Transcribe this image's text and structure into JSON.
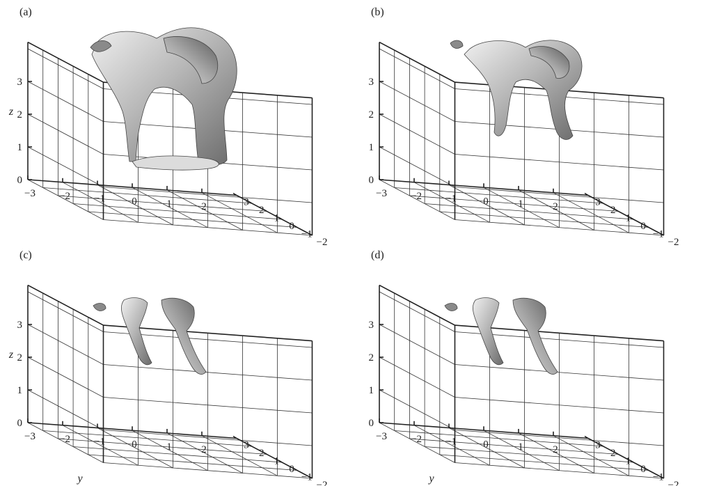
{
  "figure": {
    "panels": [
      {
        "label": "(a)",
        "z_axis_label": "z",
        "y_axis_label": "",
        "z_ticks": [
          "0",
          "1",
          "2",
          "3"
        ],
        "y_ticks": [
          "−3",
          "−2",
          "−1",
          "0",
          "1",
          "2"
        ],
        "x_ticks": [
          "3",
          "2",
          "1",
          "0",
          "−1",
          "−2"
        ],
        "structure_extent": "large"
      },
      {
        "label": "(b)",
        "z_axis_label": "",
        "y_axis_label": "",
        "z_ticks": [
          "0",
          "1",
          "2",
          "3"
        ],
        "y_ticks": [
          "−3",
          "−2",
          "−1",
          "0",
          "1",
          "2"
        ],
        "x_ticks": [
          "3",
          "2",
          "1",
          "0",
          "−1",
          "−2"
        ],
        "structure_extent": "medium"
      },
      {
        "label": "(c)",
        "z_axis_label": "z",
        "y_axis_label": "y",
        "z_ticks": [
          "0",
          "1",
          "2",
          "3"
        ],
        "y_ticks": [
          "−3",
          "−2",
          "−1",
          "0",
          "1",
          "2"
        ],
        "x_ticks": [
          "3",
          "2",
          "1",
          "0",
          "−1",
          "−2"
        ],
        "structure_extent": "small"
      },
      {
        "label": "(d)",
        "z_axis_label": "",
        "y_axis_label": "y",
        "z_ticks": [
          "0",
          "1",
          "2",
          "3"
        ],
        "y_ticks": [
          "−3",
          "−2",
          "−1",
          "0",
          "1",
          "2"
        ],
        "x_ticks": [
          "3",
          "2",
          "1",
          "0",
          "−1",
          "−2"
        ],
        "structure_extent": "small"
      }
    ],
    "colors": {
      "frame": "#222222",
      "isosurface_light": "#e4e4e4",
      "isosurface_mid": "#9a9a9a",
      "isosurface_dark": "#3c3c3c"
    }
  }
}
